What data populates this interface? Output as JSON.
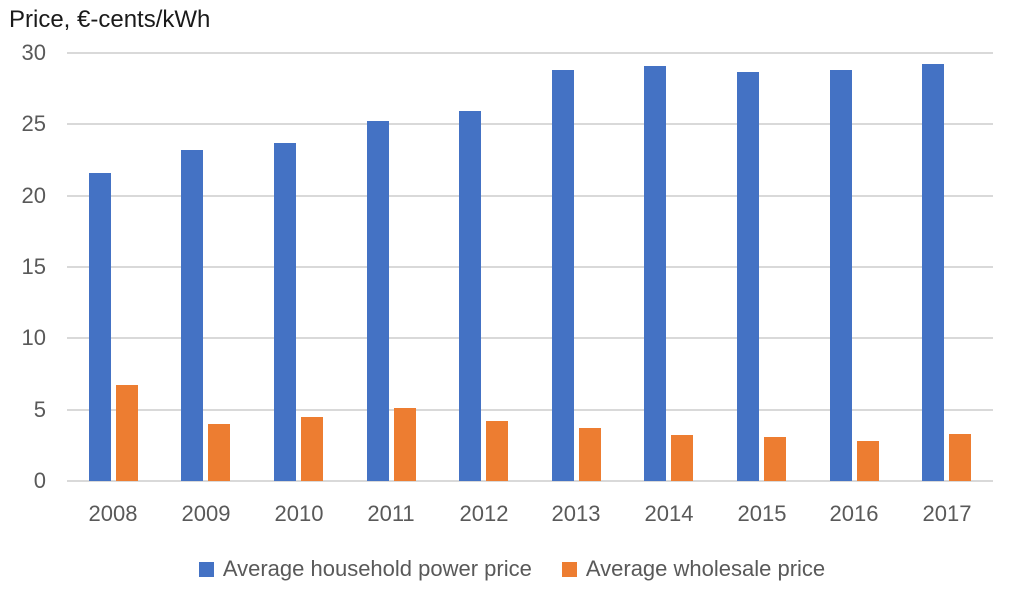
{
  "chart_data": {
    "type": "bar",
    "title": "Price, €-cents/kWh",
    "ylabel": "Price, €-cents/kWh",
    "xlabel": "",
    "categories": [
      "2008",
      "2009",
      "2010",
      "2011",
      "2012",
      "2013",
      "2014",
      "2015",
      "2016",
      "2017"
    ],
    "series": [
      {
        "id": "household",
        "name": "Average household power price",
        "color": "#4472C4",
        "values": [
          21.6,
          23.2,
          23.7,
          25.2,
          25.9,
          28.8,
          29.1,
          28.7,
          28.8,
          29.2
        ]
      },
      {
        "id": "wholesale",
        "name": "Average wholesale price",
        "color": "#ED7D31",
        "values": [
          6.7,
          4.0,
          4.5,
          5.1,
          4.2,
          3.7,
          3.2,
          3.1,
          2.8,
          3.3
        ]
      }
    ],
    "ylim": [
      0,
      30
    ],
    "yticks": [
      0,
      5,
      10,
      15,
      20,
      25,
      30
    ],
    "grid": true,
    "legend_position": "bottom",
    "colors": {
      "gridline": "#d9d9d9",
      "axis_text": "#595959",
      "title_text": "#1a1a1a"
    }
  }
}
